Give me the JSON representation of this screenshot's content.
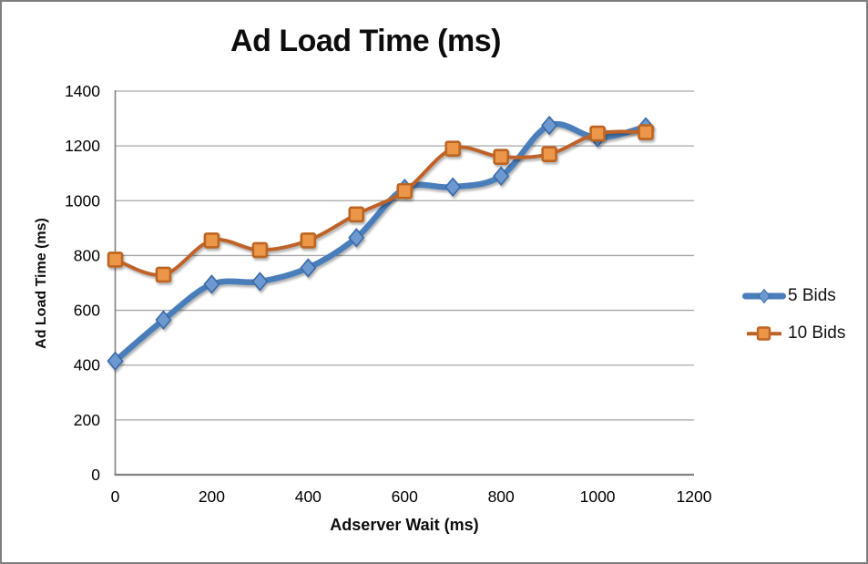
{
  "window": {
    "background": "#ffffff",
    "border_color": "#7f7f7f"
  },
  "chart_data": {
    "type": "line",
    "title": "Ad Load Time (ms)",
    "xlabel": "Adserver Wait (ms)",
    "ylabel": "Ad Load Time (ms)",
    "x": [
      0,
      100,
      200,
      300,
      400,
      500,
      600,
      700,
      800,
      900,
      1000,
      1100
    ],
    "series": [
      {
        "name": "5 Bids",
        "values": [
          415,
          565,
          695,
          705,
          755,
          865,
          1045,
          1050,
          1090,
          1275,
          1230,
          1270
        ],
        "line_color": "#4A7EBB",
        "line_width": 6.5,
        "marker": "diamond",
        "marker_fill": "#6C99D0",
        "marker_border": "#3A67A5"
      },
      {
        "name": "10 Bids",
        "values": [
          785,
          730,
          855,
          820,
          855,
          950,
          1035,
          1190,
          1160,
          1170,
          1245,
          1250
        ],
        "line_color": "#BE6229",
        "line_width": 4,
        "marker": "square",
        "marker_fill": "#EC9648",
        "marker_border": "#BC6524"
      }
    ],
    "xlim": [
      0,
      1200
    ],
    "ylim": [
      0,
      1400
    ],
    "xticks": [
      0,
      200,
      400,
      600,
      800,
      1000,
      1200
    ],
    "yticks": [
      0,
      200,
      400,
      600,
      800,
      1000,
      1200,
      1400
    ],
    "grid": true,
    "gridline_color": "#A6A6A6",
    "axis_color": "#808080",
    "tick_color": "#000000",
    "legend_position": "right",
    "smooth": true
  }
}
